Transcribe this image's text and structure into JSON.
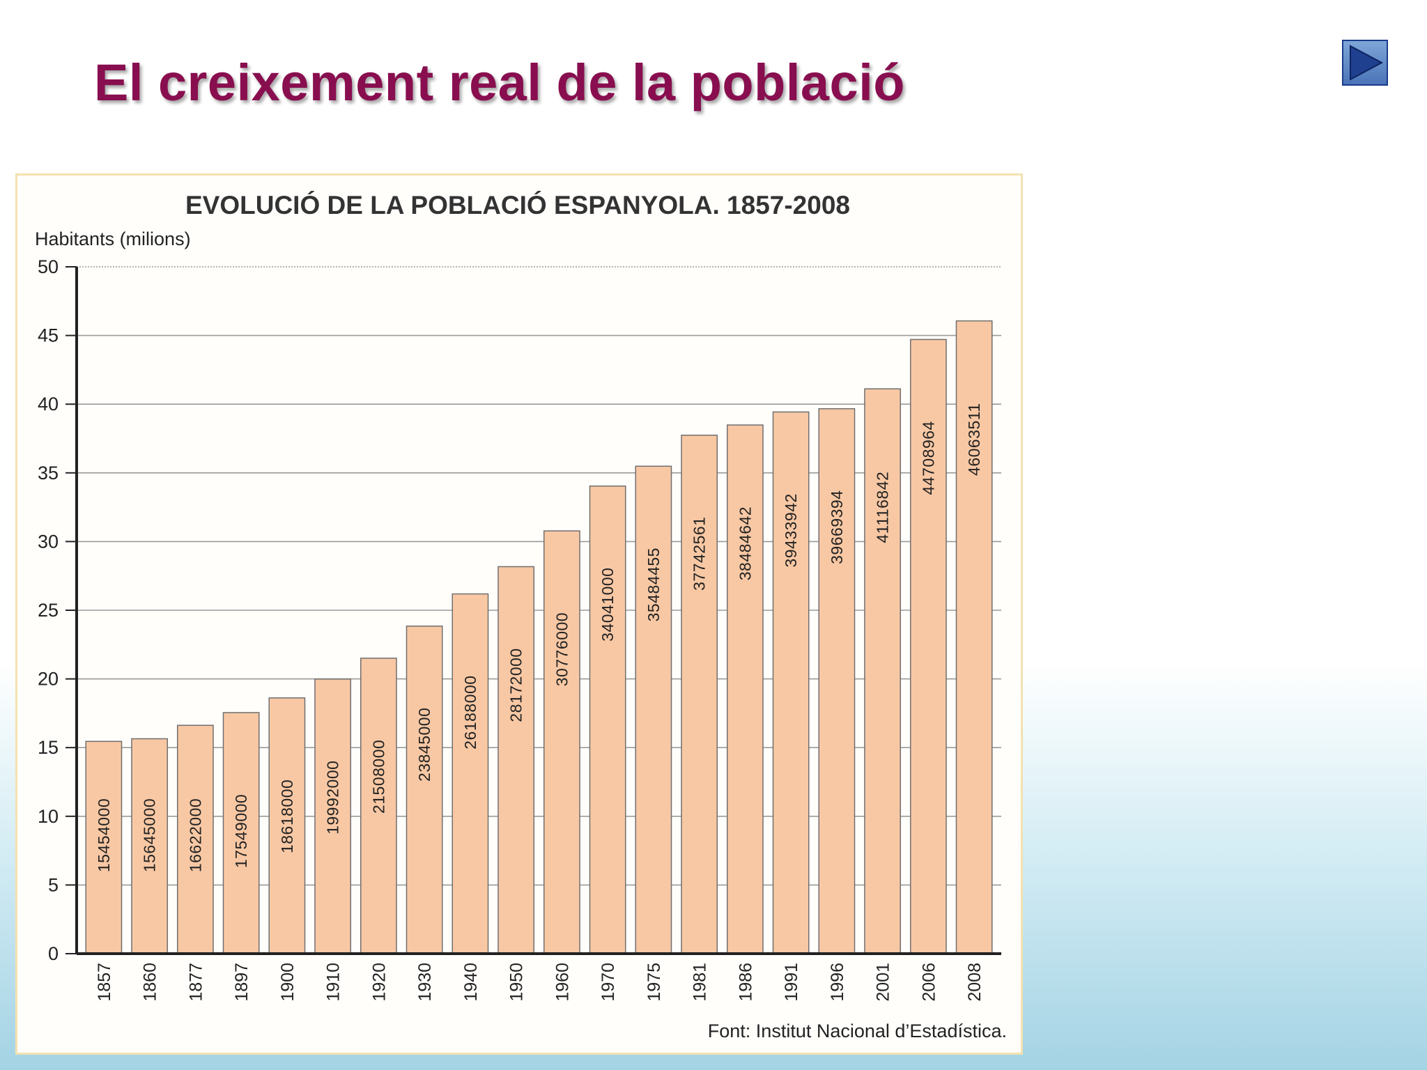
{
  "slide": {
    "title": "El creixement real de la població",
    "next_button_icon": "play-arrow-icon"
  },
  "chart_data": {
    "type": "bar",
    "title": "EVOLUCIÓ DE LA POBLACIÓ ESPANYOLA. 1857-2008",
    "ylabel": "Habitants (milions)",
    "xlabel": "",
    "source": "Font: Institut Nacional d’Estadística.",
    "ylim": [
      0,
      50
    ],
    "yticks": [
      0,
      5,
      10,
      15,
      20,
      25,
      30,
      35,
      40,
      45,
      50
    ],
    "grid": true,
    "bar_color": "#f8c8a4",
    "categories": [
      "1857",
      "1860",
      "1877",
      "1897",
      "1900",
      "1910",
      "1920",
      "1930",
      "1940",
      "1950",
      "1960",
      "1970",
      "1975",
      "1981",
      "1986",
      "1991",
      "1996",
      "2001",
      "2006",
      "2008"
    ],
    "values": [
      15454000,
      15645000,
      16622000,
      17549000,
      18618000,
      19992000,
      21508000,
      23845000,
      26188000,
      28172000,
      30776000,
      34041000,
      35484455,
      37742561,
      38484642,
      39433942,
      39669394,
      41116842,
      44708964,
      46063511
    ],
    "value_labels": [
      "15454000",
      "15645000",
      "16622000",
      "17549000",
      "18618000",
      "19992000",
      "21508000",
      "23845000",
      "26188000",
      "28172000",
      "30776000",
      "34041000",
      "35484455",
      "37742561",
      "38484642",
      "39433942",
      "39669394",
      "41116842",
      "44708964",
      "46063511"
    ]
  }
}
